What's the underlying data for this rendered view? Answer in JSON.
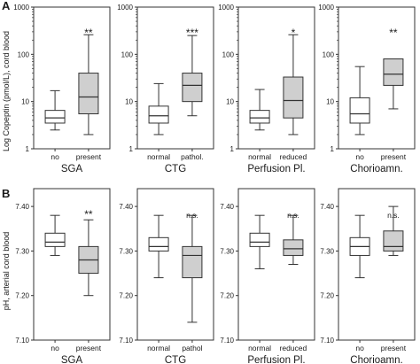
{
  "panel_labels": [
    "A",
    "B"
  ],
  "row_a_ylabel": "Log Copeptin (pmol/L), cord blood",
  "row_b_ylabel": "pH, arterial cord blood",
  "colors": {
    "box_light": "#ffffff",
    "box_dark": "#cfcfcf",
    "stroke": "#333333"
  },
  "chart_data": [
    {
      "type": "boxplot",
      "row": "A",
      "yscale": "log",
      "ylim": [
        1,
        1000
      ],
      "yticks": [
        1,
        10,
        100,
        1000
      ],
      "yticklabels": [
        "1",
        "10",
        "100",
        "1000"
      ],
      "title": "SGA",
      "categories": [
        "no",
        "present"
      ],
      "annotation": "**",
      "boxes": [
        {
          "category": "no",
          "min": 2.5,
          "q1": 3.5,
          "median": 4.5,
          "q3": 6.5,
          "max": 17,
          "shaded": false
        },
        {
          "category": "present",
          "min": 2.0,
          "q1": 5.5,
          "median": 12.5,
          "q3": 40,
          "max": 260,
          "shaded": true
        }
      ]
    },
    {
      "type": "boxplot",
      "row": "A",
      "yscale": "log",
      "ylim": [
        1,
        1000
      ],
      "yticks": [
        1,
        10,
        100,
        1000
      ],
      "yticklabels": [
        "1",
        "10",
        "100",
        "1000"
      ],
      "title": "CTG",
      "categories": [
        "normal",
        "pathol."
      ],
      "annotation": "***",
      "boxes": [
        {
          "category": "normal",
          "min": 2.0,
          "q1": 3.5,
          "median": 5.0,
          "q3": 8.0,
          "max": 24,
          "shaded": false
        },
        {
          "category": "pathol.",
          "min": 5.0,
          "q1": 10,
          "median": 22,
          "q3": 40,
          "max": 250,
          "shaded": true
        }
      ]
    },
    {
      "type": "boxplot",
      "row": "A",
      "yscale": "log",
      "ylim": [
        1,
        1000
      ],
      "yticks": [
        1,
        10,
        100,
        1000
      ],
      "yticklabels": [
        "1",
        "10",
        "100",
        "1000"
      ],
      "title": "Perfusion Pl.",
      "categories": [
        "normal",
        "reduced"
      ],
      "annotation": "*",
      "boxes": [
        {
          "category": "normal",
          "min": 2.5,
          "q1": 3.5,
          "median": 4.5,
          "q3": 6.5,
          "max": 18,
          "shaded": false
        },
        {
          "category": "reduced",
          "min": 2.0,
          "q1": 4.5,
          "median": 10.5,
          "q3": 33,
          "max": 260,
          "shaded": true
        }
      ]
    },
    {
      "type": "boxplot",
      "row": "A",
      "yscale": "log",
      "ylim": [
        1,
        1000
      ],
      "yticks": [
        1,
        10,
        100,
        1000
      ],
      "yticklabels": [
        "1",
        "10",
        "100",
        "1000"
      ],
      "title": "Chorioamn.",
      "categories": [
        "no",
        "present"
      ],
      "annotation": "**",
      "boxes": [
        {
          "category": "no",
          "min": 2.0,
          "q1": 3.5,
          "median": 5.5,
          "q3": 12,
          "max": 55,
          "shaded": false
        },
        {
          "category": "present",
          "min": 7.0,
          "q1": 22,
          "median": 38,
          "q3": 80,
          "max": 80,
          "shaded": true
        }
      ]
    },
    {
      "type": "boxplot",
      "row": "B",
      "yscale": "linear",
      "ylim": [
        7.1,
        7.44
      ],
      "yticks": [
        7.1,
        7.2,
        7.3,
        7.4
      ],
      "yticklabels": [
        "7.10",
        "7.20",
        "7.30",
        "7.40"
      ],
      "title": "SGA",
      "categories": [
        "no",
        "present"
      ],
      "annotation": "**",
      "boxes": [
        {
          "category": "no",
          "min": 7.29,
          "q1": 7.31,
          "median": 7.32,
          "q3": 7.34,
          "max": 7.38,
          "shaded": false
        },
        {
          "category": "present",
          "min": 7.2,
          "q1": 7.25,
          "median": 7.28,
          "q3": 7.31,
          "max": 7.37,
          "shaded": true
        }
      ]
    },
    {
      "type": "boxplot",
      "row": "B",
      "yscale": "linear",
      "ylim": [
        7.1,
        7.44
      ],
      "yticks": [
        7.1,
        7.2,
        7.3,
        7.4
      ],
      "yticklabels": [
        "7.10",
        "7.20",
        "7.30",
        "7.40"
      ],
      "title": "CTG",
      "categories": [
        "normal",
        "pathol"
      ],
      "annotation": "n.s.",
      "boxes": [
        {
          "category": "normal",
          "min": 7.24,
          "q1": 7.3,
          "median": 7.31,
          "q3": 7.33,
          "max": 7.38,
          "shaded": false
        },
        {
          "category": "pathol",
          "min": 7.14,
          "q1": 7.24,
          "median": 7.29,
          "q3": 7.31,
          "max": 7.38,
          "shaded": true
        }
      ]
    },
    {
      "type": "boxplot",
      "row": "B",
      "yscale": "linear",
      "ylim": [
        7.1,
        7.44
      ],
      "yticks": [
        7.1,
        7.2,
        7.3,
        7.4
      ],
      "yticklabels": [
        "7.10",
        "7.20",
        "7.30",
        "7.40"
      ],
      "title": "Perfusion Pl.",
      "categories": [
        "normal",
        "reduced"
      ],
      "annotation": "n.s.",
      "boxes": [
        {
          "category": "normal",
          "min": 7.26,
          "q1": 7.31,
          "median": 7.32,
          "q3": 7.34,
          "max": 7.38,
          "shaded": false
        },
        {
          "category": "reduced",
          "min": 7.27,
          "q1": 7.29,
          "median": 7.305,
          "q3": 7.325,
          "max": 7.38,
          "shaded": true
        }
      ]
    },
    {
      "type": "boxplot",
      "row": "B",
      "yscale": "linear",
      "ylim": [
        7.1,
        7.44
      ],
      "yticks": [
        7.1,
        7.2,
        7.3,
        7.4
      ],
      "yticklabels": [
        "7.10",
        "7.20",
        "7.30",
        "7.40"
      ],
      "title": "Chorioamn.",
      "categories": [
        "no",
        "present"
      ],
      "annotation": "n.s.",
      "boxes": [
        {
          "category": "no",
          "min": 7.24,
          "q1": 7.29,
          "median": 7.31,
          "q3": 7.33,
          "max": 7.38,
          "shaded": false
        },
        {
          "category": "present",
          "min": 7.29,
          "q1": 7.3,
          "median": 7.31,
          "q3": 7.345,
          "max": 7.4,
          "shaded": true
        }
      ]
    }
  ]
}
